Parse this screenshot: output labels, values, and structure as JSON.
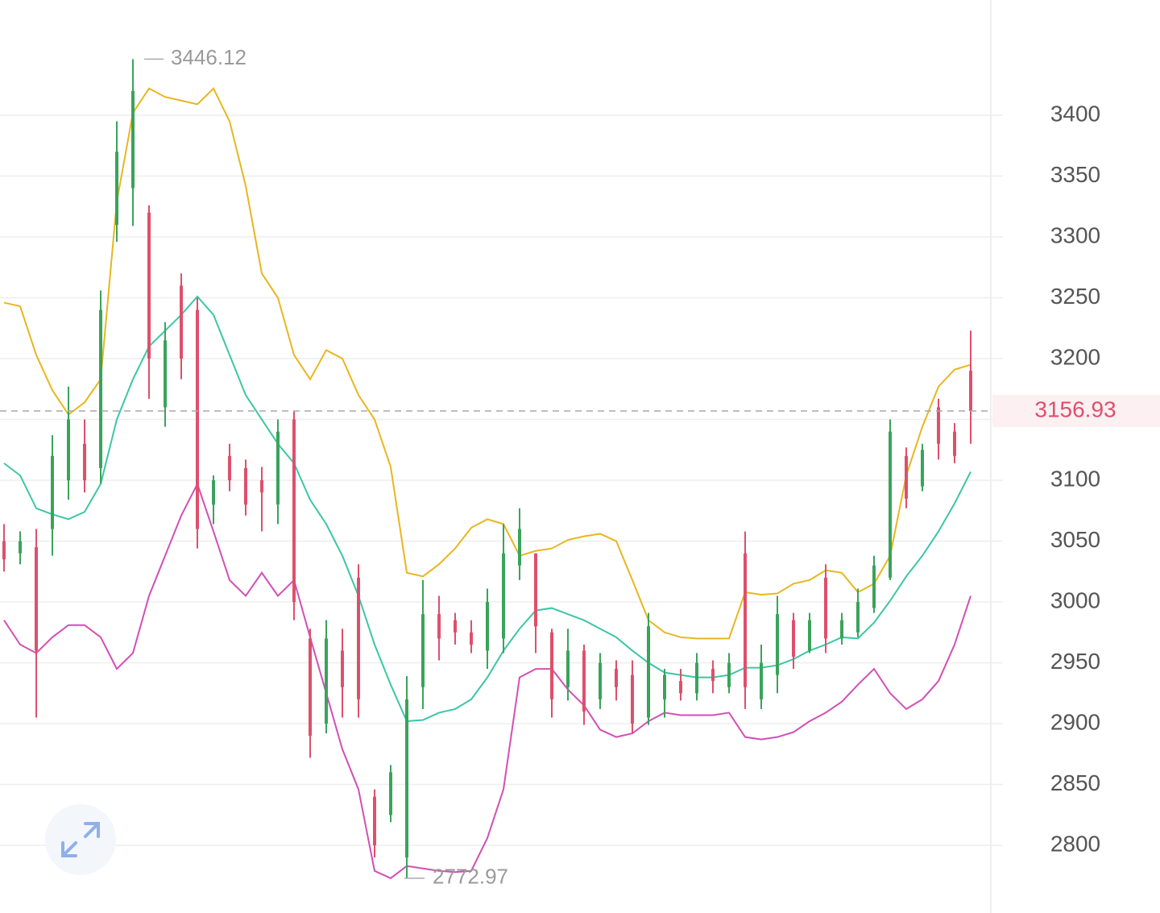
{
  "chart_data": {
    "type": "candlestick",
    "up_color": "#3aa35c",
    "down_color": "#df4f6c",
    "ylim": [
      2744.4,
      3494.7
    ],
    "yticks": [
      2800,
      2850,
      2900,
      2950,
      3000,
      3050,
      3100,
      3150,
      3200,
      3250,
      3300,
      3350,
      3400
    ],
    "grid": true,
    "open": [
      3050,
      3040,
      3045,
      3060,
      3100,
      3130,
      3110,
      3310,
      3340,
      3320,
      3160,
      3260,
      3240,
      3080,
      3120,
      3110,
      3100,
      3080,
      3150,
      2970,
      2900,
      2960,
      3020,
      2840,
      2825,
      2790,
      2930,
      2990,
      2985,
      2975,
      2960,
      2970,
      3030,
      3040,
      2975,
      2930,
      2960,
      2920,
      2945,
      2940,
      2905,
      2920,
      2935,
      2925,
      2945,
      2930,
      3040,
      2920,
      2940,
      2985,
      2960,
      3020,
      2970,
      2975,
      2995,
      3020,
      3120,
      3095,
      3160,
      3140,
      3190
    ],
    "high": [
      3064,
      3058,
      3060,
      3137,
      3177,
      3150,
      3256,
      3395,
      3446.12,
      3326,
      3230,
      3270,
      3250,
      3104,
      3130,
      3117,
      3111,
      3150,
      3157,
      2978,
      2985,
      2978,
      3031,
      2846,
      2866,
      2939,
      3018,
      3005,
      2991,
      2985,
      3011,
      3064,
      3077,
      3038,
      2978,
      2978,
      2965,
      2958,
      2952,
      2952,
      2991,
      2945,
      2945,
      2958,
      2952,
      2958,
      3058,
      2965,
      3005,
      2991,
      2991,
      3031,
      2991,
      3011,
      3038,
      3150,
      3127,
      3130,
      3167,
      3147,
      3223
    ],
    "low": [
      3025,
      3031,
      2905,
      3038,
      3084,
      3090,
      3097,
      3296,
      3309,
      3167,
      3144,
      3183,
      3044,
      3064,
      3091,
      3071,
      3058,
      3064,
      2985,
      2872,
      2892,
      2905,
      2905,
      2790,
      2819,
      2772.97,
      2912,
      2952,
      2965,
      2958,
      2945,
      2958,
      3018,
      2958,
      2905,
      2919,
      2899,
      2912,
      2919,
      2892,
      2899,
      2905,
      2919,
      2919,
      2925,
      2925,
      2912,
      2912,
      2925,
      2945,
      2958,
      2958,
      2965,
      2971,
      2991,
      3018,
      3077,
      3091,
      3117,
      3114,
      3130
    ],
    "close": [
      3035,
      3050,
      2960,
      3120,
      3150,
      3100,
      3240,
      3370,
      3420,
      3200,
      3215,
      3200,
      3060,
      3100,
      3100,
      3080,
      3090,
      3140,
      3000,
      2890,
      2970,
      2930,
      2920,
      2800,
      2860,
      2920,
      2990,
      2970,
      2975,
      2965,
      3000,
      3040,
      3060,
      2980,
      2920,
      2960,
      2910,
      2950,
      2930,
      2900,
      2980,
      2940,
      2925,
      2950,
      2935,
      2950,
      2930,
      2950,
      2990,
      2955,
      2985,
      2970,
      2985,
      3000,
      3030,
      3140,
      3085,
      3125,
      3130,
      3120,
      3156.93
    ],
    "bands": {
      "upper": {
        "color": "#e9b61e",
        "values": [
          3246,
          3243,
          3203,
          3174,
          3154,
          3164,
          3183,
          3329,
          3402,
          3422,
          3415,
          3412,
          3409,
          3422,
          3395,
          3342,
          3270,
          3250,
          3203,
          3183,
          3207,
          3200,
          3170,
          3150,
          3111,
          3024,
          3021,
          3031,
          3044,
          3061,
          3068,
          3064,
          3038,
          3042,
          3044,
          3051,
          3054,
          3056,
          3050,
          3018,
          2985,
          2975,
          2971,
          2970,
          2970,
          2970,
          3008,
          3006,
          3007,
          3015,
          3018,
          3026,
          3024,
          3008,
          3015,
          3038,
          3104,
          3144,
          3177,
          3191,
          3195
        ]
      },
      "middle": {
        "color": "#3cc6a6",
        "values": [
          3114,
          3104,
          3077,
          3072,
          3068,
          3074,
          3097,
          3150,
          3183,
          3210,
          3223,
          3236,
          3251,
          3236,
          3203,
          3170,
          3150,
          3130,
          3114,
          3084,
          3064,
          3038,
          3005,
          2965,
          2932,
          2902,
          2903,
          2909,
          2912,
          2920,
          2938,
          2960,
          2978,
          2993,
          2995,
          2990,
          2985,
          2978,
          2971,
          2960,
          2950,
          2942,
          2940,
          2938,
          2938,
          2940,
          2946,
          2946,
          2948,
          2953,
          2960,
          2965,
          2971,
          2970,
          2983,
          3001,
          3021,
          3038,
          3058,
          3081,
          3107
        ]
      },
      "lower": {
        "color": "#d24fb6",
        "values": [
          2985,
          2965,
          2958,
          2971,
          2981,
          2981,
          2971,
          2945,
          2958,
          3005,
          3038,
          3071,
          3097,
          3058,
          3018,
          3005,
          3024,
          3005,
          3018,
          2971,
          2925,
          2879,
          2846,
          2779,
          2773,
          2783,
          2781,
          2779,
          2778,
          2779,
          2806,
          2846,
          2938,
          2945,
          2945,
          2928,
          2915,
          2895,
          2889,
          2892,
          2902,
          2909,
          2907,
          2907,
          2907,
          2909,
          2889,
          2887,
          2889,
          2893,
          2902,
          2909,
          2918,
          2932,
          2945,
          2925,
          2912,
          2920,
          2935,
          2965,
          3005
        ]
      }
    }
  }
}
